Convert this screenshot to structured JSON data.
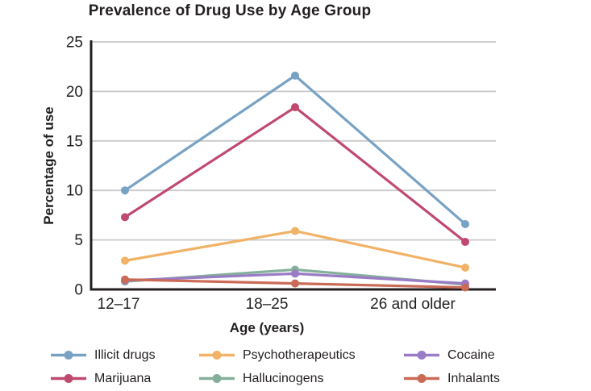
{
  "chart_data": {
    "type": "line",
    "title": "Prevalence of Drug Use by Age Group",
    "xlabel": "Age (years)",
    "ylabel": "Percentage of use",
    "categories": [
      "12–17",
      "18–25",
      "26 and older"
    ],
    "ylim": [
      0,
      25
    ],
    "yticks": [
      0,
      5,
      10,
      15,
      20,
      25
    ],
    "grid": true,
    "legend_position": "bottom",
    "series": [
      {
        "name": "Illicit drugs",
        "color": "#78a2c4",
        "values": [
          10.0,
          21.6,
          6.6
        ]
      },
      {
        "name": "Marijuana",
        "color": "#c04a6f",
        "values": [
          7.3,
          18.4,
          4.8
        ]
      },
      {
        "name": "Psychotherapeutics",
        "color": "#f1b266",
        "values": [
          2.9,
          5.9,
          2.2
        ]
      },
      {
        "name": "Hallucinogens",
        "color": "#84b09b",
        "values": [
          0.8,
          2.0,
          0.5
        ]
      },
      {
        "name": "Cocaine",
        "color": "#9a7bc5",
        "values": [
          0.9,
          1.6,
          0.6
        ]
      },
      {
        "name": "Inhalants",
        "color": "#ca6a57",
        "values": [
          1.0,
          0.6,
          0.2
        ]
      }
    ]
  }
}
